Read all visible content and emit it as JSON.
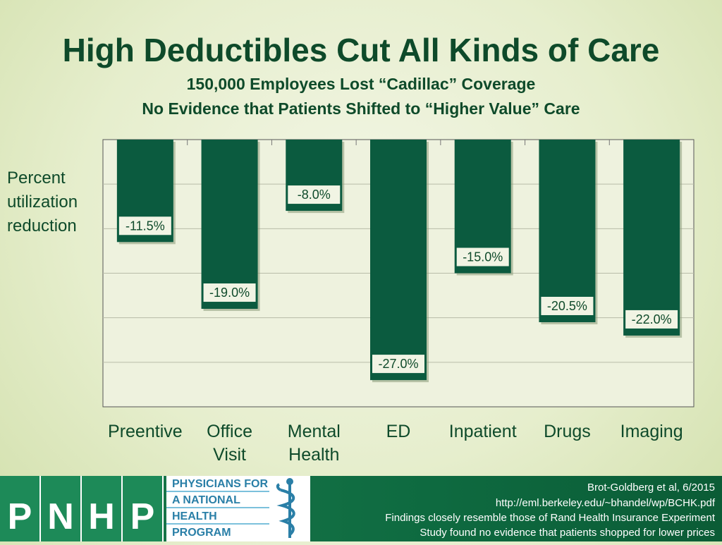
{
  "header": {
    "title": "High Deductibles Cut All Kinds of Care",
    "subtitle1": "150,000 Employees Lost “Cadillac” Coverage",
    "subtitle2": "No Evidence that Patients Shifted to “Higher Value” Care"
  },
  "chart_data": {
    "type": "bar",
    "title": "High Deductibles Cut All Kinds of Care",
    "ylabel": "Percent utilization reduction",
    "xlabel": "",
    "categories": [
      [
        "Preentive"
      ],
      [
        "Office",
        "Visit"
      ],
      [
        "Mental",
        "Health"
      ],
      [
        "ED"
      ],
      [
        "Inpatient"
      ],
      [
        "Drugs"
      ],
      [
        "Imaging"
      ]
    ],
    "values": [
      -11.5,
      -19.0,
      -8.0,
      -27.0,
      -15.0,
      -20.5,
      -22.0
    ],
    "value_labels": [
      "-11.5%",
      "-19.0%",
      "-8.0%",
      "-27.0%",
      "-15.0%",
      "-20.5%",
      "-22.0%"
    ],
    "ylim": [
      -30,
      0
    ],
    "grid": true,
    "bar_color": "#0b5b3f"
  },
  "ylabel_lines": [
    "Percent",
    "utilization",
    "reduction"
  ],
  "footer": {
    "logo_letters": [
      "P",
      "N",
      "H",
      "P"
    ],
    "logo_lines": [
      "PHYSICIANS FOR",
      "A NATIONAL",
      "HEALTH",
      "PROGRAM"
    ],
    "citation1": "Brot-Goldberg et al, 6/2015",
    "citation2": "http://eml.berkeley.edu/~bhandel/wp/BCHK.pdf",
    "citation3": "Findings closely resemble those of Rand Health Insurance Experiment",
    "citation4": "Study found no evidence that patients shopped for lower prices"
  }
}
